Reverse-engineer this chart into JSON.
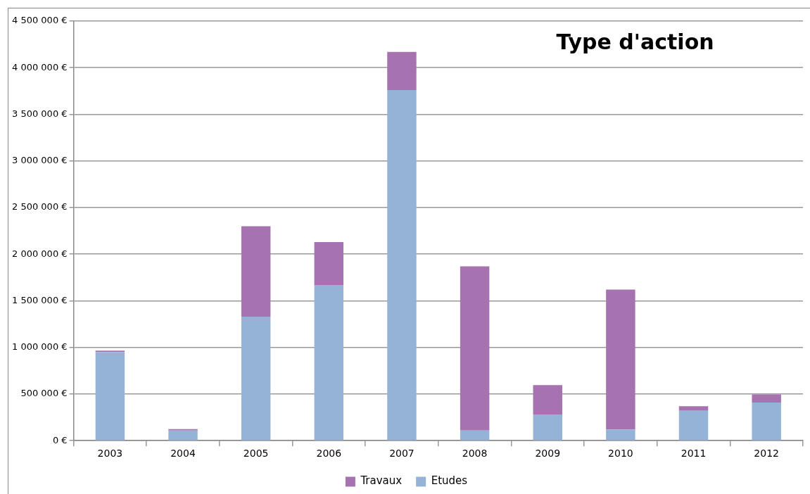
{
  "chart_data": {
    "type": "bar",
    "title": "Type d'action",
    "categories": [
      "2003",
      "2004",
      "2005",
      "2006",
      "2007",
      "2008",
      "2009",
      "2010",
      "2011",
      "2012"
    ],
    "stacked": true,
    "series": [
      {
        "name": "Etudes",
        "color": "#95b3d7",
        "values": [
          950000,
          110000,
          1330000,
          1670000,
          3760000,
          110000,
          280000,
          120000,
          320000,
          410000
        ]
      },
      {
        "name": "Travaux",
        "color": "#a672b0",
        "values": [
          15000,
          15000,
          970000,
          460000,
          410000,
          1760000,
          315000,
          1500000,
          50000,
          85000
        ]
      }
    ],
    "ylim": [
      0,
      4500000
    ],
    "yticks": [
      {
        "value": 0,
        "label": "0 €"
      },
      {
        "value": 500000,
        "label": "500 000 €"
      },
      {
        "value": 1000000,
        "label": "1 000 000 €"
      },
      {
        "value": 1500000,
        "label": "1 500 000 €"
      },
      {
        "value": 2000000,
        "label": "2 000 000 €"
      },
      {
        "value": 2500000,
        "label": "2 500 000 €"
      },
      {
        "value": 3000000,
        "label": "3 000 000 €"
      },
      {
        "value": 3500000,
        "label": "3 500 000 €"
      },
      {
        "value": 4000000,
        "label": "4 000 000 €"
      },
      {
        "value": 4500000,
        "label": "4 500 000 €"
      }
    ],
    "grid": "y",
    "legend": "bottom"
  }
}
